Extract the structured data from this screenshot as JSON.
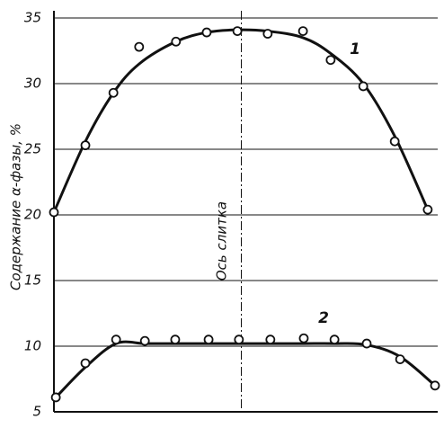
{
  "chart_data": {
    "type": "line",
    "ylabel": "Содержание α-фазы, %",
    "annotation": "Ось слитка",
    "xlim": [
      0,
      100
    ],
    "ylim": [
      5,
      35
    ],
    "yticks": [
      5,
      10,
      15,
      20,
      25,
      30,
      35
    ],
    "grid": true,
    "series": [
      {
        "name": "1",
        "color": "#111111",
        "x": [
          0,
          8.2,
          15.5,
          22.2,
          31.8,
          39.8,
          47.8,
          55.7,
          64.9,
          72.1,
          80.6,
          88.8,
          97.4
        ],
        "values": [
          20.2,
          25.3,
          29.3,
          32.8,
          33.2,
          33.9,
          34.0,
          33.8,
          34.0,
          31.8,
          29.8,
          25.6,
          20.4
        ],
        "fit_values": [
          20.2,
          25.6,
          29.3,
          31.5,
          33.2,
          33.9,
          34.1,
          34.0,
          33.5,
          32.3,
          30.0,
          26.0,
          20.4
        ]
      },
      {
        "name": "2",
        "color": "#111111",
        "x": [
          0.5,
          8.2,
          16.2,
          23.7,
          31.6,
          40.3,
          48.2,
          56.4,
          65.1,
          73.1,
          81.5,
          90.2,
          99.3
        ],
        "values": [
          6.1,
          8.7,
          10.5,
          10.4,
          10.5,
          10.5,
          10.5,
          10.5,
          10.6,
          10.5,
          10.2,
          9.0,
          7.0
        ],
        "fit_values": [
          6.1,
          8.4,
          10.2,
          10.2,
          10.2,
          10.2,
          10.2,
          10.2,
          10.2,
          10.2,
          10.1,
          9.2,
          7.0
        ]
      }
    ]
  }
}
